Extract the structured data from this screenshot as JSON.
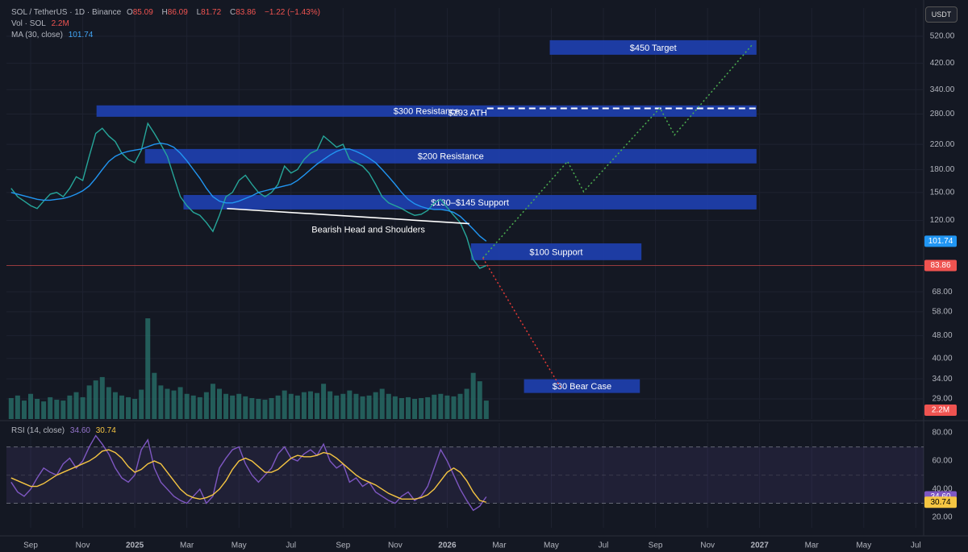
{
  "chart_data": {
    "type": "line",
    "symbol": "SOL / TetherUS · 1D · Binance",
    "ohlc": [
      {
        "label": "O",
        "value": 85.09
      },
      {
        "label": "H",
        "value": 86.09
      },
      {
        "label": "L",
        "value": 81.72
      },
      {
        "label": "C",
        "value": 83.86
      }
    ],
    "change_label": "−1.22 (−1.43%)",
    "currency": "USDT",
    "log_scale": true,
    "grid": true,
    "x": [
      -0.75,
      -0.5,
      -0.25,
      0,
      0.25,
      0.5,
      0.75,
      1,
      1.25,
      1.5,
      1.75,
      2,
      2.25,
      2.5,
      2.75,
      3,
      3.25,
      3.5,
      3.75,
      4,
      4.25,
      4.5,
      4.75,
      5,
      5.25,
      5.5,
      5.75,
      6,
      6.25,
      6.5,
      6.75,
      7,
      7.25,
      7.5,
      7.75,
      8,
      8.25,
      8.5,
      8.75,
      9,
      9.25,
      9.5,
      9.75,
      10,
      10.25,
      10.5,
      10.75,
      11,
      11.25,
      11.5,
      11.75,
      12,
      12.25,
      12.5,
      12.75,
      13,
      13.25,
      13.5,
      13.75,
      14,
      14.25,
      14.5,
      14.75,
      15,
      15.25,
      15.5,
      15.75,
      16,
      16.25,
      16.5,
      16.75,
      17,
      17.25,
      17.5
    ],
    "xlim": [
      -0.93,
      34.3
    ],
    "xticks": [
      {
        "value": 0,
        "label": "Sep"
      },
      {
        "value": 2,
        "label": "Nov"
      },
      {
        "value": 4,
        "label": "2025"
      },
      {
        "value": 6,
        "label": "Mar"
      },
      {
        "value": 8,
        "label": "May"
      },
      {
        "value": 10,
        "label": "Jul"
      },
      {
        "value": 12,
        "label": "Sep"
      },
      {
        "value": 14,
        "label": "Nov"
      },
      {
        "value": 16,
        "label": "2026"
      },
      {
        "value": 18,
        "label": "Mar"
      },
      {
        "value": 20,
        "label": "May"
      },
      {
        "value": 22,
        "label": "Jul"
      },
      {
        "value": 24,
        "label": "Sep"
      },
      {
        "value": 26,
        "label": "Nov"
      },
      {
        "value": 28,
        "label": "2027"
      },
      {
        "value": 30,
        "label": "Mar"
      },
      {
        "value": 32,
        "label": "May"
      },
      {
        "value": 34,
        "label": "Jul"
      }
    ],
    "ylim": [
      24.7,
      651
    ],
    "yticks": [
      {
        "value": 520,
        "label": "520.00"
      },
      {
        "value": 420,
        "label": "420.00"
      },
      {
        "value": 340,
        "label": "340.00"
      },
      {
        "value": 280,
        "label": "280.00"
      },
      {
        "value": 220,
        "label": "220.00"
      },
      {
        "value": 180,
        "label": "180.00"
      },
      {
        "value": 150,
        "label": "150.00"
      },
      {
        "value": 120,
        "label": "120.00"
      },
      {
        "value": 68,
        "label": "68.00"
      },
      {
        "value": 58,
        "label": "58.00"
      },
      {
        "value": 48,
        "label": "48.00"
      },
      {
        "value": 40,
        "label": "40.00"
      },
      {
        "value": 34,
        "label": "34.00"
      },
      {
        "value": 29,
        "label": "29.00"
      }
    ],
    "price": {
      "color": "#26a69a",
      "values": [
        155,
        145,
        140,
        135,
        132,
        140,
        148,
        150,
        145,
        155,
        170,
        165,
        200,
        240,
        250,
        235,
        225,
        205,
        195,
        190,
        210,
        260,
        240,
        220,
        200,
        170,
        145,
        135,
        128,
        125,
        118,
        110,
        125,
        145,
        150,
        165,
        172,
        160,
        150,
        145,
        150,
        160,
        185,
        175,
        180,
        195,
        205,
        210,
        235,
        225,
        215,
        220,
        195,
        190,
        185,
        175,
        160,
        145,
        138,
        135,
        132,
        128,
        125,
        126,
        130,
        138,
        142,
        133,
        125,
        118,
        105,
        88,
        82,
        83.86
      ]
    },
    "ma": {
      "name": "MA (30, close)",
      "color": "#2196f3",
      "values": [
        150,
        148,
        146,
        144,
        142,
        141,
        141,
        142,
        143,
        145,
        148,
        152,
        158,
        168,
        180,
        192,
        200,
        205,
        208,
        210,
        212,
        216,
        220,
        222,
        220,
        215,
        205,
        193,
        180,
        168,
        155,
        145,
        140,
        138,
        138,
        140,
        143,
        146,
        150,
        152,
        154,
        156,
        158,
        160,
        165,
        172,
        180,
        188,
        195,
        202,
        208,
        212,
        212,
        208,
        203,
        197,
        190,
        180,
        170,
        160,
        150,
        142,
        137,
        134,
        132,
        131,
        131,
        130,
        128,
        124,
        118,
        112,
        106,
        101.74
      ]
    },
    "volume": {
      "name": "Vol · SOL",
      "color": "#2a7a72",
      "last_label": "2.2M",
      "values": [
        2.5,
        2.8,
        2.2,
        3,
        2.4,
        2.1,
        2.6,
        2.3,
        2.2,
        2.8,
        3.2,
        2.6,
        4,
        4.6,
        5,
        3.8,
        3.2,
        2.8,
        2.6,
        2.4,
        3.5,
        12,
        5.5,
        4,
        3.6,
        3.4,
        3.8,
        3,
        2.8,
        2.6,
        3.2,
        4.2,
        3.6,
        3,
        2.8,
        3,
        2.7,
        2.5,
        2.4,
        2.3,
        2.5,
        2.8,
        3.4,
        3,
        2.8,
        3.2,
        3.3,
        3.1,
        4.2,
        3.3,
        2.8,
        3,
        3.4,
        3,
        2.7,
        2.8,
        3.2,
        3.6,
        3,
        2.7,
        2.5,
        2.6,
        2.4,
        2.5,
        2.6,
        2.9,
        3,
        2.8,
        2.7,
        3,
        3.6,
        5.5,
        4.5,
        2.2
      ]
    },
    "zones": [
      {
        "label": "$450 Target",
        "low": 449,
        "high": 504,
        "x_start": 19.94,
        "x_end": 27.88
      },
      {
        "label": "$300 Resistance",
        "low": 274,
        "high": 300,
        "x_start": 2.53,
        "x_end": 27.88
      },
      {
        "label": "$200 Resistance",
        "low": 189,
        "high": 212,
        "x_start": 4.39,
        "x_end": 27.88
      },
      {
        "label": "$130–$145 Support",
        "low": 131,
        "high": 147,
        "x_start": 5.87,
        "x_end": 27.88
      },
      {
        "label": "$100 Support",
        "low": 87.5,
        "high": 100,
        "x_start": 16.91,
        "x_end": 23.46
      },
      {
        "label": "$30 Bear Case",
        "low": 30.4,
        "high": 33.9,
        "x_start": 18.95,
        "x_end": 23.4
      }
    ],
    "ath": {
      "label": "$293 ATH",
      "value": 293,
      "x_start": 17.53,
      "x_end": 27.88
    },
    "neckline": {
      "label": "Bearish Head and Shoulders",
      "x": [
        7.54,
        16.85
      ],
      "values": [
        132,
        117
      ]
    },
    "projections": [
      {
        "color": "#4caf50",
        "x": [
          17.37,
          20.62,
          21.24,
          24.17,
          24.73,
          27.73
        ],
        "values": [
          89,
          192,
          151,
          294,
          237,
          488
        ]
      },
      {
        "color": "#e53935",
        "x": [
          17.37,
          20.37
        ],
        "values": [
          89,
          31.6
        ]
      }
    ],
    "rsi": {
      "name": "RSI (14, close)",
      "ylim": [
        12.6,
        86.9
      ],
      "yticks": [
        {
          "value": 80,
          "label": "80.00"
        },
        {
          "value": 60,
          "label": "60.00"
        },
        {
          "value": 40,
          "label": "40.00"
        },
        {
          "value": 20,
          "label": "20.00"
        }
      ],
      "levels": [
        30,
        50,
        70
      ],
      "series": [
        {
          "color": "#7e57c2",
          "last_label": "34.60",
          "values": [
            45,
            38,
            35,
            40,
            48,
            55,
            52,
            50,
            58,
            62,
            55,
            60,
            70,
            78,
            72,
            65,
            55,
            48,
            45,
            50,
            68,
            75,
            55,
            45,
            40,
            35,
            32,
            30,
            35,
            40,
            30,
            35,
            55,
            62,
            68,
            70,
            58,
            50,
            45,
            50,
            55,
            65,
            70,
            62,
            60,
            65,
            68,
            64,
            72,
            60,
            55,
            58,
            45,
            48,
            42,
            45,
            38,
            35,
            32,
            30,
            35,
            38,
            32,
            35,
            42,
            55,
            68,
            60,
            50,
            40,
            32,
            25,
            28,
            34.6
          ]
        },
        {
          "color": "#f5c542",
          "last_label": "30.74",
          "values": [
            48,
            46,
            44,
            42,
            42,
            44,
            47,
            50,
            52,
            54,
            56,
            58,
            60,
            63,
            67,
            68,
            66,
            62,
            56,
            52,
            54,
            58,
            60,
            58,
            52,
            46,
            40,
            36,
            34,
            33,
            34,
            36,
            40,
            46,
            54,
            60,
            62,
            60,
            56,
            52,
            52,
            54,
            58,
            62,
            64,
            63,
            63,
            64,
            66,
            65,
            62,
            58,
            54,
            50,
            47,
            45,
            43,
            40,
            37,
            35,
            33,
            33,
            33,
            34,
            36,
            40,
            46,
            52,
            55,
            52,
            46,
            38,
            32,
            30.74
          ]
        }
      ]
    }
  }
}
